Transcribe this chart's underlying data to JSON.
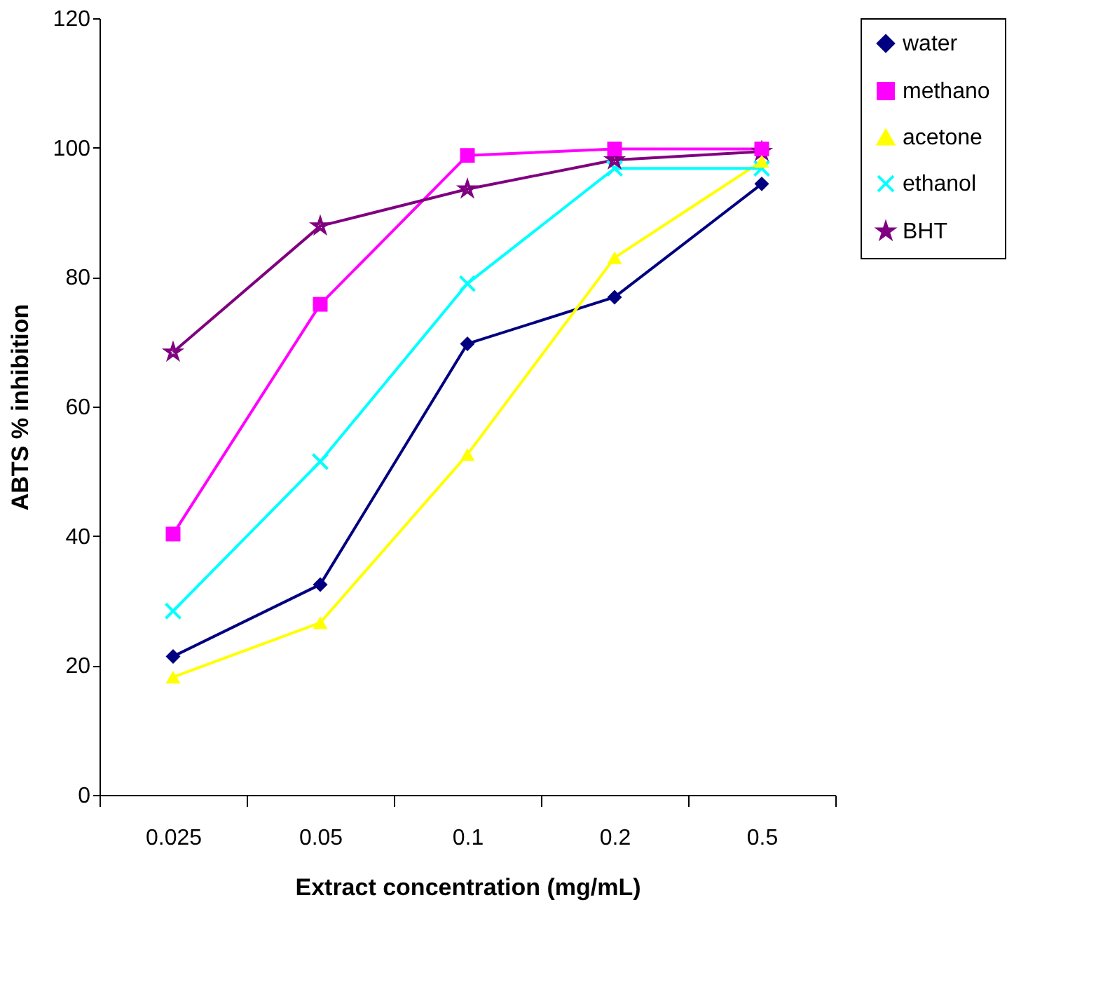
{
  "chart_data": {
    "type": "line",
    "xlabel": "Extract concentration (mg/mL)",
    "ylabel": "ABTS % inhibition",
    "categories": [
      "0.025",
      "0.05",
      "0.1",
      "0.2",
      "0.5"
    ],
    "ylim": [
      0,
      120
    ],
    "yticks": [
      0,
      20,
      40,
      60,
      80,
      100,
      120
    ],
    "grid": false,
    "legend": "right",
    "series": [
      {
        "name": "water",
        "color": "#000080",
        "marker": "diamond",
        "values": [
          21.4,
          32.5,
          69.7,
          76.9,
          94.4
        ]
      },
      {
        "name": "methano",
        "color": "#ff00ff",
        "marker": "square",
        "values": [
          40.3,
          75.8,
          98.8,
          99.8,
          99.8
        ]
      },
      {
        "name": "acetone",
        "color": "#ffff00",
        "marker": "triangle",
        "values": [
          18.2,
          26.6,
          52.6,
          83.0,
          97.9
        ]
      },
      {
        "name": "ethanol",
        "color": "#00ffff",
        "marker": "cross",
        "values": [
          28.4,
          51.5,
          79.0,
          96.8,
          96.8
        ]
      },
      {
        "name": "BHT",
        "color": "#800080",
        "marker": "star",
        "values": [
          68.4,
          87.9,
          93.6,
          98.1,
          99.4
        ]
      }
    ]
  }
}
